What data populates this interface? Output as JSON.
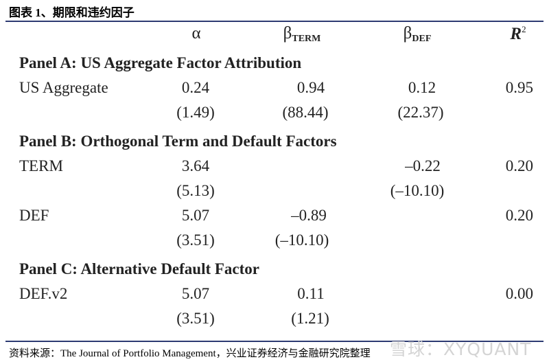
{
  "caption": "图表 1、期限和违约因子",
  "header": {
    "alpha": "α",
    "beta": "β",
    "term_sub": "TERM",
    "def_sub": "DEF",
    "r2": "R",
    "r2_sup": "2"
  },
  "panel_a": {
    "title": "Panel A: US Aggregate Factor Attribution",
    "rows": [
      {
        "label": "US Aggregate",
        "alpha": "0.24",
        "b_term": "0.94",
        "b_def": "0.12",
        "r2": "0.95",
        "t_alpha": "(1.49)",
        "t_term": "(88.44)",
        "t_def": "(22.37)"
      }
    ]
  },
  "panel_b": {
    "title": "Panel B: Orthogonal Term and Default Factors",
    "rows": [
      {
        "label": "TERM",
        "alpha": "3.64",
        "b_term": "",
        "b_def": "–0.22",
        "r2": "0.20",
        "t_alpha": "(5.13)",
        "t_term": "",
        "t_def": "(–10.10)"
      },
      {
        "label": "DEF",
        "alpha": "5.07",
        "b_term": "–0.89",
        "b_def": "",
        "r2": "0.20",
        "t_alpha": "(3.51)",
        "t_term": "(–10.10)",
        "t_def": ""
      }
    ]
  },
  "panel_c": {
    "title": "Panel C: Alternative Default Factor",
    "rows": [
      {
        "label": "DEF.v2",
        "alpha": "5.07",
        "b_term": "0.11",
        "b_def": "",
        "r2": "0.00",
        "t_alpha": "(3.51)",
        "t_term": "(1.21)",
        "t_def": ""
      }
    ]
  },
  "source": "资料来源：The Journal of Portfolio Management，兴业证券经济与金融研究院整理",
  "watermark": "雪球：XYQUANT"
}
